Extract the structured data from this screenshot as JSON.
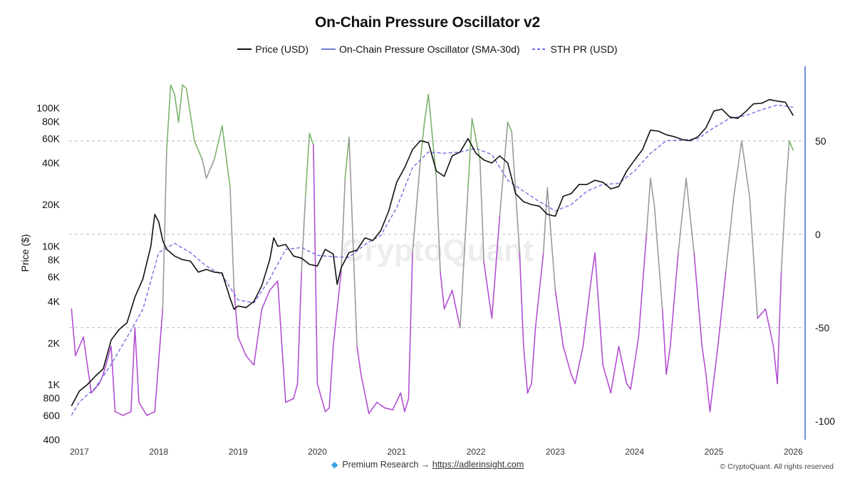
{
  "title": "On-Chain Pressure Oscillator v2",
  "legend": [
    {
      "label": "Price (USD)",
      "color": "#111111",
      "style": "solid"
    },
    {
      "label": "On-Chain Pressure Oscillator (SMA-30d)",
      "color": "#6f7fd6",
      "style": "solid"
    },
    {
      "label": "STH PR (USD)",
      "color": "#6f6fe0",
      "style": "dashed"
    }
  ],
  "watermark": "CryptoQuant",
  "footer": {
    "text": "Premium Research →",
    "link": "https://adlerinsight.com"
  },
  "copyright": "© CryptoQuant. All rights reserved",
  "colors": {
    "price": "#111111",
    "sth": "#6f6fe0",
    "osc_high": "#7cb36c",
    "osc_mid": "#9a9a9a",
    "osc_low": "#b24fd1",
    "right_axis": "#4b6fd6"
  },
  "chart_data": {
    "type": "line",
    "left_axis": {
      "label": "Price ($)",
      "scale": "log",
      "range": [
        400,
        200000
      ],
      "ticks": [
        400,
        600,
        800,
        1000,
        2000,
        4000,
        6000,
        8000,
        10000,
        20000,
        40000,
        60000,
        80000,
        100000
      ],
      "tick_labels": [
        "400",
        "600",
        "800",
        "1K",
        "2K",
        "4K",
        "6K",
        "8K",
        "10K",
        "20K",
        "40K",
        "60K",
        "80K",
        "100K"
      ]
    },
    "right_axis": {
      "range": [
        -110,
        90
      ],
      "ticks": [
        50,
        0,
        -50,
        -100
      ],
      "tick_labels": [
        "50",
        "0",
        "-50",
        "-100"
      ]
    },
    "x_axis": {
      "range": [
        2016.87,
        2026.15
      ],
      "ticks": [
        2017,
        2018,
        2019,
        2020,
        2021,
        2022,
        2023,
        2024,
        2025,
        2026
      ],
      "tick_labels": [
        "2017",
        "2018",
        "2019",
        "2020",
        "2021",
        "2022",
        "2023",
        "2024",
        "2025",
        "2026"
      ]
    },
    "reference_lines": [
      50,
      0,
      -50
    ],
    "series": [
      {
        "name": "Price (USD)",
        "axis": "left",
        "x": [
          2016.9,
          2017.0,
          2017.1,
          2017.2,
          2017.3,
          2017.4,
          2017.5,
          2017.6,
          2017.7,
          2017.8,
          2017.9,
          2017.95,
          2018.0,
          2018.05,
          2018.1,
          2018.15,
          2018.2,
          2018.3,
          2018.4,
          2018.5,
          2018.6,
          2018.7,
          2018.8,
          2018.9,
          2018.95,
          2019.0,
          2019.1,
          2019.2,
          2019.3,
          2019.4,
          2019.45,
          2019.5,
          2019.6,
          2019.7,
          2019.8,
          2019.9,
          2020.0,
          2020.1,
          2020.2,
          2020.25,
          2020.3,
          2020.4,
          2020.5,
          2020.6,
          2020.7,
          2020.8,
          2020.9,
          2021.0,
          2021.1,
          2021.2,
          2021.3,
          2021.4,
          2021.5,
          2021.6,
          2021.7,
          2021.8,
          2021.9,
          2022.0,
          2022.1,
          2022.2,
          2022.3,
          2022.4,
          2022.5,
          2022.6,
          2022.7,
          2022.8,
          2022.9,
          2023.0,
          2023.1,
          2023.2,
          2023.3,
          2023.4,
          2023.5,
          2023.6,
          2023.7,
          2023.8,
          2023.9,
          2024.0,
          2024.1,
          2024.2,
          2024.3,
          2024.4,
          2024.5,
          2024.6,
          2024.7,
          2024.8,
          2024.9,
          2025.0,
          2025.1,
          2025.2,
          2025.3,
          2025.4,
          2025.5,
          2025.6,
          2025.7,
          2025.8,
          2025.9,
          2026.0
        ],
        "y": [
          700,
          900,
          1000,
          1150,
          1300,
          2100,
          2500,
          2800,
          4300,
          5800,
          10000,
          17000,
          15000,
          11000,
          9500,
          9000,
          8500,
          8000,
          7800,
          6500,
          6800,
          6500,
          6400,
          4200,
          3500,
          3700,
          3600,
          4000,
          5200,
          8000,
          11500,
          10000,
          10300,
          8500,
          8200,
          7400,
          7200,
          9500,
          8800,
          5300,
          7000,
          9000,
          9400,
          11500,
          11000,
          13000,
          18000,
          29000,
          37000,
          50000,
          58000,
          56000,
          35000,
          32000,
          45000,
          48000,
          60000,
          47000,
          42000,
          40000,
          45000,
          40000,
          24000,
          21000,
          20000,
          19500,
          17000,
          16500,
          23000,
          24000,
          28000,
          28000,
          30000,
          29000,
          26000,
          27000,
          35000,
          42000,
          50000,
          69000,
          68000,
          64000,
          62000,
          59000,
          58000,
          62000,
          72000,
          95000,
          98000,
          86000,
          84000,
          94000,
          107000,
          108000,
          115000,
          112000,
          110000,
          88000
        ]
      },
      {
        "name": "STH PR (USD)",
        "axis": "left",
        "x": [
          2016.9,
          2017.0,
          2017.2,
          2017.4,
          2017.6,
          2017.8,
          2018.0,
          2018.2,
          2018.4,
          2018.6,
          2018.8,
          2019.0,
          2019.2,
          2019.4,
          2019.6,
          2019.8,
          2020.0,
          2020.2,
          2020.4,
          2020.6,
          2020.8,
          2021.0,
          2021.2,
          2021.4,
          2021.6,
          2021.8,
          2022.0,
          2022.2,
          2022.4,
          2022.6,
          2022.8,
          2023.0,
          2023.2,
          2023.4,
          2023.6,
          2023.8,
          2024.0,
          2024.2,
          2024.4,
          2024.6,
          2024.8,
          2025.0,
          2025.2,
          2025.4,
          2025.6,
          2025.8,
          2026.0
        ],
        "y": [
          600,
          750,
          950,
          1400,
          2200,
          3500,
          9000,
          10500,
          9000,
          7200,
          6200,
          4100,
          3900,
          5800,
          9500,
          9800,
          8600,
          8400,
          8300,
          10300,
          12000,
          19000,
          37000,
          48000,
          47000,
          48000,
          51000,
          46000,
          30000,
          25000,
          21000,
          18000,
          20000,
          25000,
          28000,
          28500,
          35000,
          47000,
          58000,
          58500,
          60000,
          72000,
          84000,
          88000,
          97000,
          105000,
          101000
        ]
      },
      {
        "name": "On-Chain Pressure Oscillator (SMA-30d)",
        "axis": "right",
        "x": [
          2016.9,
          2016.95,
          2017.05,
          2017.15,
          2017.25,
          2017.3,
          2017.4,
          2017.45,
          2017.55,
          2017.65,
          2017.7,
          2017.75,
          2017.85,
          2017.95,
          2018.05,
          2018.1,
          2018.15,
          2018.2,
          2018.25,
          2018.3,
          2018.35,
          2018.45,
          2018.55,
          2018.6,
          2018.7,
          2018.8,
          2018.9,
          2018.95,
          2019.0,
          2019.1,
          2019.2,
          2019.3,
          2019.4,
          2019.5,
          2019.6,
          2019.7,
          2019.75,
          2019.8,
          2019.85,
          2019.9,
          2019.95,
          2020.0,
          2020.1,
          2020.15,
          2020.2,
          2020.3,
          2020.35,
          2020.4,
          2020.5,
          2020.55,
          2020.65,
          2020.75,
          2020.85,
          2020.95,
          2021.05,
          2021.1,
          2021.15,
          2021.2,
          2021.3,
          2021.35,
          2021.4,
          2021.5,
          2021.55,
          2021.6,
          2021.7,
          2021.8,
          2021.9,
          2021.95,
          2022.05,
          2022.1,
          2022.2,
          2022.3,
          2022.4,
          2022.45,
          2022.55,
          2022.6,
          2022.65,
          2022.7,
          2022.75,
          2022.85,
          2022.9,
          2023.0,
          2023.1,
          2023.2,
          2023.25,
          2023.35,
          2023.45,
          2023.5,
          2023.6,
          2023.7,
          2023.8,
          2023.9,
          2023.95,
          2024.05,
          2024.15,
          2024.2,
          2024.25,
          2024.35,
          2024.4,
          2024.45,
          2024.55,
          2024.65,
          2024.75,
          2024.85,
          2024.9,
          2024.95,
          2025.05,
          2025.15,
          2025.25,
          2025.35,
          2025.45,
          2025.55,
          2025.65,
          2025.75,
          2025.8,
          2025.85,
          2025.9,
          2025.95,
          2026.0
        ],
        "y": [
          -40,
          -65,
          -55,
          -85,
          -80,
          -75,
          -60,
          -95,
          -97,
          -95,
          -50,
          -90,
          -97,
          -95,
          -40,
          45,
          80,
          75,
          60,
          80,
          78,
          50,
          40,
          30,
          40,
          58,
          25,
          -30,
          -55,
          -65,
          -70,
          -40,
          -30,
          -25,
          -90,
          -88,
          -80,
          -20,
          20,
          54,
          48,
          -80,
          -95,
          -93,
          -60,
          -20,
          30,
          52,
          -60,
          -75,
          -96,
          -90,
          -93,
          -94,
          -85,
          -95,
          -88,
          -10,
          40,
          60,
          75,
          30,
          -20,
          -40,
          -30,
          -50,
          25,
          62,
          40,
          -15,
          -45,
          10,
          60,
          55,
          -10,
          -60,
          -85,
          -80,
          -50,
          -10,
          25,
          -30,
          -60,
          -75,
          -80,
          -60,
          -25,
          -10,
          -70,
          -85,
          -60,
          -80,
          -83,
          -55,
          0,
          30,
          15,
          -40,
          -75,
          -60,
          -10,
          30,
          -10,
          -60,
          -75,
          -95,
          -60,
          -20,
          20,
          50,
          20,
          -45,
          -40,
          -60,
          -80,
          -20,
          20,
          50,
          45
        ]
      }
    ]
  }
}
